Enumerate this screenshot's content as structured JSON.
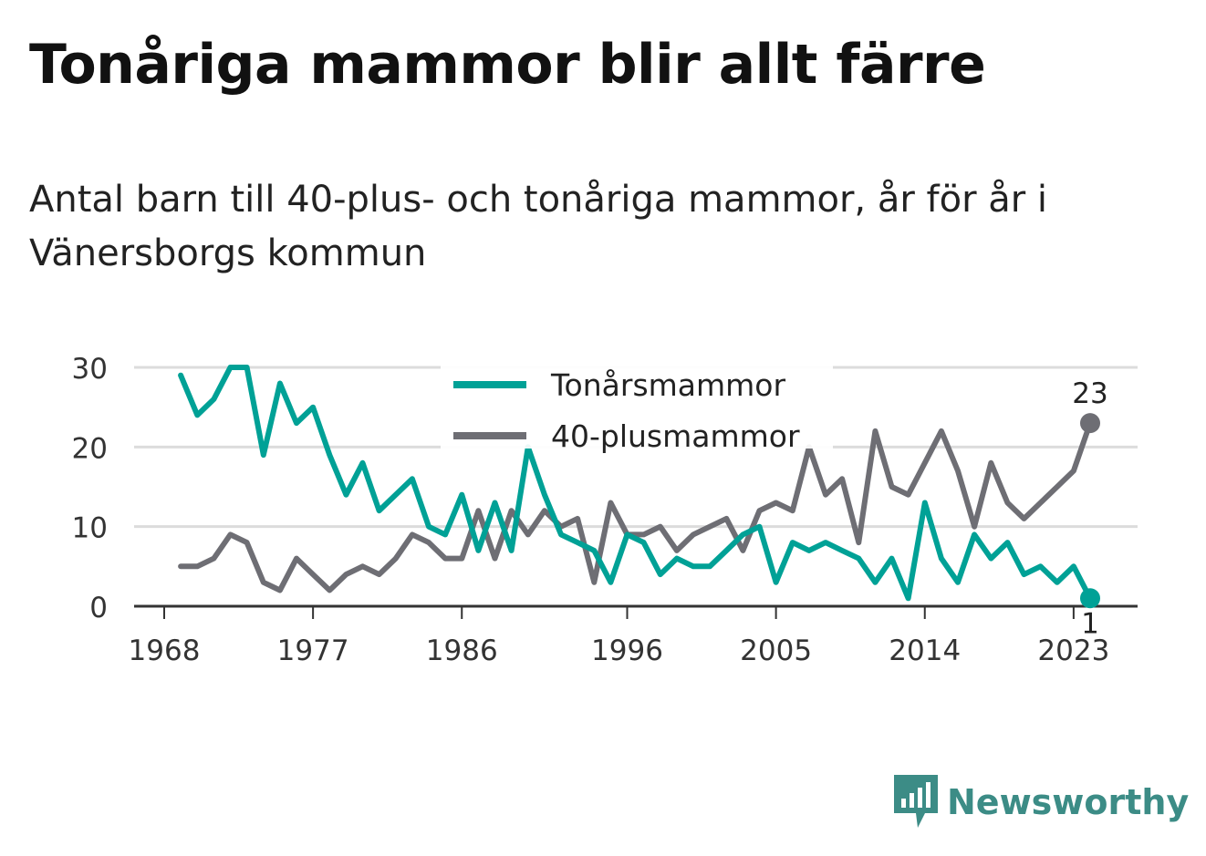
{
  "title": "Tonåriga mammor blir allt färre",
  "subtitle": "Antal barn till 40-plus- och tonåriga mammor, år för år i Vänersborgs kommun",
  "brand": {
    "name": "Newsworthy",
    "color": "#3c8c86",
    "icon": "bar-chart-speech-bubble-icon"
  },
  "chart_data": {
    "type": "line",
    "x": [
      1969,
      1970,
      1971,
      1972,
      1973,
      1974,
      1975,
      1976,
      1977,
      1978,
      1979,
      1980,
      1981,
      1982,
      1983,
      1984,
      1985,
      1986,
      1987,
      1988,
      1989,
      1990,
      1991,
      1992,
      1993,
      1994,
      1995,
      1996,
      1997,
      1998,
      1999,
      2000,
      2001,
      2002,
      2003,
      2004,
      2005,
      2006,
      2007,
      2008,
      2009,
      2010,
      2011,
      2012,
      2013,
      2014,
      2015,
      2016,
      2017,
      2018,
      2019,
      2020,
      2021,
      2022,
      2023,
      2024
    ],
    "series": [
      {
        "name": "Tonårsmammor",
        "color": "#00a196",
        "values": [
          29,
          24,
          26,
          30,
          30,
          19,
          28,
          23,
          25,
          19,
          14,
          18,
          12,
          14,
          16,
          10,
          9,
          14,
          7,
          13,
          7,
          20,
          14,
          9,
          8,
          7,
          3,
          9,
          8,
          4,
          6,
          5,
          5,
          7,
          9,
          10,
          3,
          8,
          7,
          8,
          7,
          6,
          3,
          6,
          1,
          13,
          6,
          3,
          9,
          6,
          8,
          4,
          5,
          3,
          5,
          1
        ]
      },
      {
        "name": "40-plusmammor",
        "color": "#6e6e74",
        "values": [
          5,
          5,
          6,
          9,
          8,
          3,
          2,
          6,
          4,
          2,
          4,
          5,
          4,
          6,
          9,
          8,
          6,
          6,
          12,
          6,
          12,
          9,
          12,
          10,
          11,
          3,
          13,
          9,
          9,
          10,
          7,
          9,
          10,
          11,
          7,
          12,
          13,
          12,
          20,
          14,
          16,
          8,
          22,
          15,
          14,
          18,
          22,
          17,
          10,
          18,
          13,
          11,
          13,
          15,
          17,
          23
        ]
      }
    ],
    "xticks": [
      1968,
      1977,
      1986,
      1996,
      2005,
      2014,
      2023
    ],
    "yticks": [
      0,
      10,
      20,
      30
    ],
    "ylim": [
      0,
      30
    ],
    "grid": true,
    "legend_position": "top-center",
    "end_labels": [
      {
        "series": "40-plusmammor",
        "x": 2024,
        "label": "23"
      },
      {
        "series": "Tonårsmammor",
        "x": 2024,
        "label": "1"
      }
    ]
  }
}
